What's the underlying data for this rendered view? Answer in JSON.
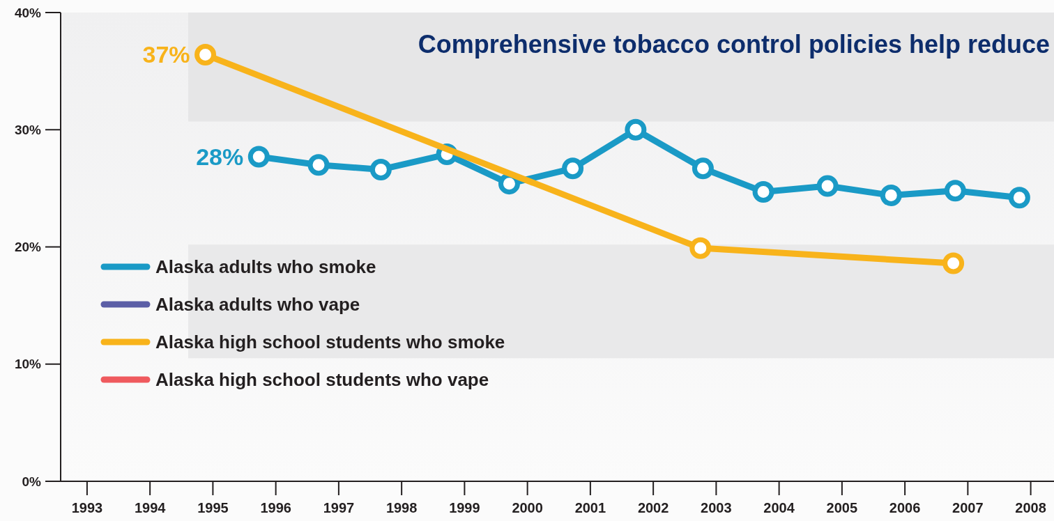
{
  "chart_data": {
    "type": "line",
    "title": "Comprehensive tobacco control policies help reduce",
    "xlim": [
      1992.58,
      2008.37
    ],
    "xticks": [
      1993,
      1994,
      1995,
      1996,
      1997,
      1998,
      1999,
      2000,
      2001,
      2002,
      2003,
      2004,
      2005,
      2006,
      2007,
      2008
    ],
    "ylim": [
      0,
      40
    ],
    "yticks": [
      {
        "value": 0,
        "label": "0%"
      },
      {
        "value": 10,
        "label": "10%"
      },
      {
        "value": 20,
        "label": "20%"
      },
      {
        "value": 30,
        "label": "30%"
      },
      {
        "value": 40,
        "label": "40%"
      }
    ],
    "grid": false,
    "legend": "left",
    "marker": "circle",
    "line_style": "solid",
    "bands": [
      {
        "axis": "y",
        "from": 30.7,
        "to": 40,
        "color": "#e6e6e7"
      },
      {
        "axis": "y",
        "from": 10.5,
        "to": 20.2,
        "color": "#e9e9ea"
      }
    ],
    "annotations": [
      {
        "text": "37%",
        "x": 1994.88,
        "y": 36.4
      },
      {
        "text": "28%",
        "x": 1995.73,
        "y": 27.7
      }
    ],
    "series": [
      {
        "name": "Alaska adults who smoke",
        "color": "#1a9ac6",
        "x": [
          1995.73,
          1996.68,
          1997.67,
          1998.72,
          1999.71,
          2000.72,
          2001.72,
          2002.79,
          2003.75,
          2004.77,
          2005.78,
          2006.8,
          2007.82
        ],
        "values": [
          27.7,
          27.0,
          26.6,
          27.9,
          25.4,
          26.7,
          30.0,
          26.7,
          24.7,
          25.2,
          24.4,
          24.8,
          24.2
        ]
      },
      {
        "name": "Alaska adults who vape",
        "color": "#5b5ea6"
      },
      {
        "name": "Alaska high school students who smoke",
        "color": "#f8b31b",
        "x": [
          1994.88,
          2002.75,
          2006.77
        ],
        "values": [
          36.4,
          19.9,
          18.6
        ]
      },
      {
        "name": "Alaska high school students who vape",
        "color": "#ef5a5e"
      }
    ]
  }
}
